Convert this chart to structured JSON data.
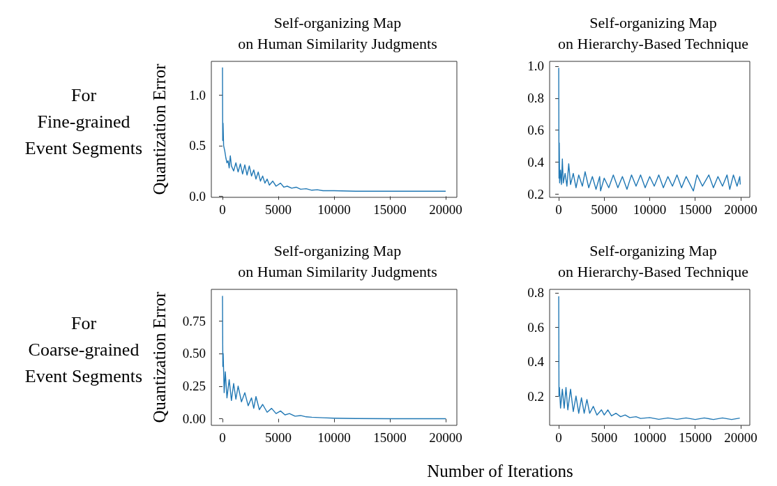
{
  "chart_data": [
    {
      "type": "line",
      "title": "Self-organizing Map\non Human Similarity Judgments",
      "ylabel": "Quantization Error",
      "annotations": [
        "For\nFine-grained\nEvent Segments"
      ],
      "xlim": [
        -1000,
        21000
      ],
      "ylim": [
        -0.01,
        1.33
      ],
      "xticks": [
        0,
        5000,
        10000,
        15000,
        20000
      ],
      "yticks": [
        {
          "value": 0,
          "label": "0.0"
        },
        0.5,
        {
          "value": 1,
          "label": "1.0"
        }
      ],
      "grid": false,
      "series": [
        {
          "color": "#1f77b4",
          "x": [
            0,
            20,
            50,
            100,
            200,
            300,
            400,
            500,
            600,
            700,
            800,
            1000,
            1200,
            1400,
            1600,
            1800,
            2000,
            2200,
            2400,
            2600,
            2800,
            3000,
            3200,
            3400,
            3600,
            3800,
            4000,
            4200,
            4500,
            4800,
            5200,
            5500,
            5800,
            6200,
            6600,
            7000,
            7500,
            8000,
            8500,
            9000,
            10000,
            12000,
            15000,
            20000
          ],
          "values": [
            1.27,
            0.55,
            0.72,
            0.5,
            0.45,
            0.38,
            0.33,
            0.35,
            0.28,
            0.4,
            0.3,
            0.25,
            0.33,
            0.24,
            0.32,
            0.22,
            0.31,
            0.21,
            0.3,
            0.2,
            0.26,
            0.17,
            0.24,
            0.15,
            0.2,
            0.13,
            0.17,
            0.11,
            0.15,
            0.1,
            0.13,
            0.09,
            0.1,
            0.08,
            0.09,
            0.07,
            0.075,
            0.06,
            0.065,
            0.055,
            0.055,
            0.05,
            0.05,
            0.05
          ]
        }
      ]
    },
    {
      "type": "line",
      "title": "Self-organizing Map\non Hierarchy-Based Technique",
      "xlim": [
        -1000,
        21000
      ],
      "ylim": [
        0.18,
        1.03
      ],
      "xticks": [
        0,
        5000,
        10000,
        15000,
        20000
      ],
      "yticks": [
        0.2,
        0.4,
        0.6,
        0.8,
        {
          "value": 1,
          "label": "1.0"
        }
      ],
      "grid": false,
      "series": [
        {
          "color": "#1f77b4",
          "x": [
            0,
            30,
            60,
            100,
            200,
            300,
            400,
            500,
            700,
            900,
            1100,
            1300,
            1600,
            1900,
            2200,
            2600,
            2900,
            3300,
            3700,
            4100,
            4500,
            4600,
            5000,
            5500,
            6000,
            6500,
            7000,
            7500,
            8000,
            8500,
            9000,
            9500,
            10000,
            10500,
            11000,
            11500,
            12000,
            12500,
            13000,
            13500,
            14000,
            14800,
            15200,
            15800,
            16500,
            17000,
            17500,
            18000,
            18500,
            18800,
            19200,
            19600,
            19900,
            19950
          ],
          "values": [
            0.99,
            0.3,
            0.52,
            0.27,
            0.35,
            0.26,
            0.42,
            0.27,
            0.33,
            0.25,
            0.39,
            0.26,
            0.33,
            0.24,
            0.32,
            0.25,
            0.34,
            0.24,
            0.31,
            0.23,
            0.31,
            0.22,
            0.3,
            0.24,
            0.32,
            0.24,
            0.31,
            0.23,
            0.32,
            0.25,
            0.32,
            0.24,
            0.31,
            0.25,
            0.32,
            0.24,
            0.31,
            0.25,
            0.32,
            0.24,
            0.31,
            0.22,
            0.32,
            0.25,
            0.32,
            0.24,
            0.31,
            0.25,
            0.32,
            0.23,
            0.32,
            0.25,
            0.31,
            0.26
          ]
        }
      ]
    },
    {
      "type": "line",
      "title": "Self-organizing Map\non Human Similarity Judgments",
      "ylabel": "Quantization Error",
      "xlabel": "Number of Iterations",
      "annotations": [
        "For\nCoarse-grained\nEvent Segments"
      ],
      "xlim": [
        -1000,
        21000
      ],
      "ylim": [
        -0.05,
        0.99
      ],
      "xticks": [
        0,
        5000,
        10000,
        15000,
        20000
      ],
      "yticks": [
        {
          "value": 0,
          "label": "0.00"
        },
        {
          "value": 0.25,
          "label": "0.25"
        },
        {
          "value": 0.5,
          "label": "0.50"
        },
        {
          "value": 0.75,
          "label": "0.75"
        }
      ],
      "grid": false,
      "series": [
        {
          "color": "#1f77b4",
          "x": [
            0,
            30,
            60,
            150,
            250,
            400,
            600,
            800,
            1000,
            1200,
            1400,
            1700,
            2000,
            2300,
            2600,
            2800,
            3000,
            3300,
            3600,
            4000,
            4400,
            4800,
            5200,
            5600,
            6000,
            6500,
            7000,
            7500,
            8000,
            9000,
            10000,
            12000,
            15000,
            20000
          ],
          "values": [
            0.94,
            0.4,
            0.5,
            0.2,
            0.36,
            0.16,
            0.3,
            0.14,
            0.27,
            0.15,
            0.25,
            0.13,
            0.2,
            0.1,
            0.16,
            0.08,
            0.17,
            0.07,
            0.11,
            0.05,
            0.08,
            0.04,
            0.06,
            0.03,
            0.04,
            0.02,
            0.025,
            0.015,
            0.012,
            0.008,
            0.005,
            0.002,
            0.001,
            0.001
          ]
        }
      ]
    },
    {
      "type": "line",
      "title": "Self-organizing Map\non Hierarchy-Based Technique",
      "xlim": [
        -1000,
        21000
      ],
      "ylim": [
        0.03,
        0.82
      ],
      "xticks": [
        0,
        5000,
        10000,
        15000,
        20000
      ],
      "yticks": [
        0.2,
        0.4,
        0.6,
        0.8
      ],
      "grid": false,
      "series": [
        {
          "color": "#1f77b4",
          "x": [
            0,
            30,
            80,
            200,
            400,
            600,
            800,
            1000,
            1300,
            1600,
            1900,
            2200,
            2500,
            2800,
            3100,
            3400,
            3800,
            4200,
            4700,
            5000,
            5400,
            5800,
            6300,
            6800,
            7300,
            7800,
            8500,
            9000,
            10000,
            11000,
            12000,
            13000,
            14000,
            15000,
            16000,
            17000,
            18000,
            19000,
            19900
          ],
          "values": [
            0.78,
            0.2,
            0.25,
            0.13,
            0.24,
            0.13,
            0.25,
            0.12,
            0.24,
            0.11,
            0.2,
            0.1,
            0.19,
            0.1,
            0.18,
            0.1,
            0.14,
            0.09,
            0.12,
            0.09,
            0.12,
            0.085,
            0.1,
            0.08,
            0.09,
            0.075,
            0.08,
            0.07,
            0.075,
            0.065,
            0.073,
            0.065,
            0.073,
            0.064,
            0.073,
            0.064,
            0.073,
            0.064,
            0.072
          ]
        }
      ]
    }
  ]
}
